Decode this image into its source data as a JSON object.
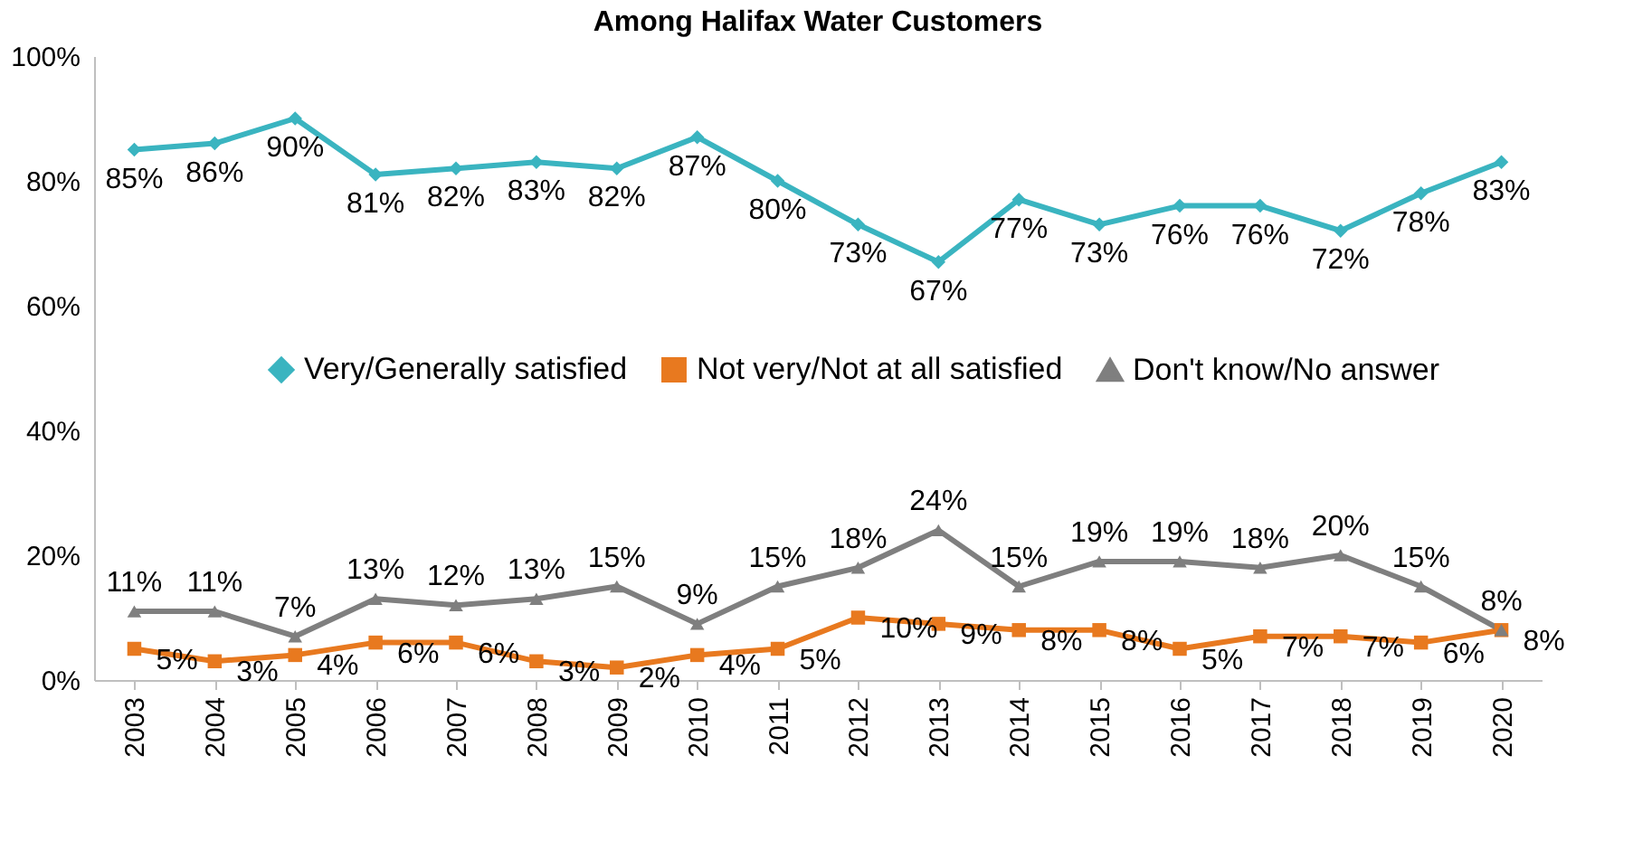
{
  "chart_data": {
    "type": "line",
    "title": "Among Halifax Water Customers",
    "categories": [
      "2003",
      "2004",
      "2005",
      "2006",
      "2007",
      "2008",
      "2009",
      "2010",
      "2011",
      "2012",
      "2013",
      "2014",
      "2015",
      "2016",
      "2017",
      "2018",
      "2019",
      "2020"
    ],
    "series": [
      {
        "name": "Very/Generally satisfied",
        "color": "#3ab4c0",
        "marker": "diamond",
        "values": [
          85,
          86,
          90,
          81,
          82,
          83,
          82,
          87,
          80,
          73,
          67,
          77,
          73,
          76,
          76,
          72,
          78,
          83
        ],
        "value_labels": [
          "85%",
          "86%",
          "90%",
          "81%",
          "82%",
          "83%",
          "82%",
          "87%",
          "80%",
          "73%",
          "67%",
          "77%",
          "73%",
          "76%",
          "76%",
          "72%",
          "78%",
          "83%"
        ]
      },
      {
        "name": "Not very/Not at all satisfied",
        "color": "#e8791f",
        "marker": "square",
        "values": [
          5,
          3,
          4,
          6,
          6,
          3,
          2,
          4,
          5,
          10,
          9,
          8,
          8,
          5,
          7,
          7,
          6,
          8
        ],
        "value_labels": [
          "5%",
          "3%",
          "4%",
          "6%",
          "6%",
          "3%",
          "2%",
          "4%",
          "5%",
          "10%",
          "9%",
          "8%",
          "8%",
          "5%",
          "7%",
          "7%",
          "6%",
          "8%"
        ]
      },
      {
        "name": "Don't know/No answer",
        "color": "#7f7f7f",
        "marker": "triangle",
        "values": [
          11,
          11,
          7,
          13,
          12,
          13,
          15,
          9,
          15,
          18,
          24,
          15,
          19,
          19,
          18,
          20,
          15,
          8
        ],
        "value_labels": [
          "11%",
          "11%",
          "7%",
          "13%",
          "12%",
          "13%",
          "15%",
          "9%",
          "15%",
          "18%",
          "24%",
          "15%",
          "19%",
          "19%",
          "18%",
          "20%",
          "15%",
          "8%"
        ]
      }
    ],
    "ylim": [
      0,
      100
    ],
    "yticks": [
      {
        "value": 0,
        "label": "0%"
      },
      {
        "value": 20,
        "label": "20%"
      },
      {
        "value": 40,
        "label": "40%"
      },
      {
        "value": 60,
        "label": "60%"
      },
      {
        "value": 80,
        "label": "80%"
      },
      {
        "value": 100,
        "label": "100%"
      }
    ],
    "grid": false,
    "legend": "center"
  }
}
